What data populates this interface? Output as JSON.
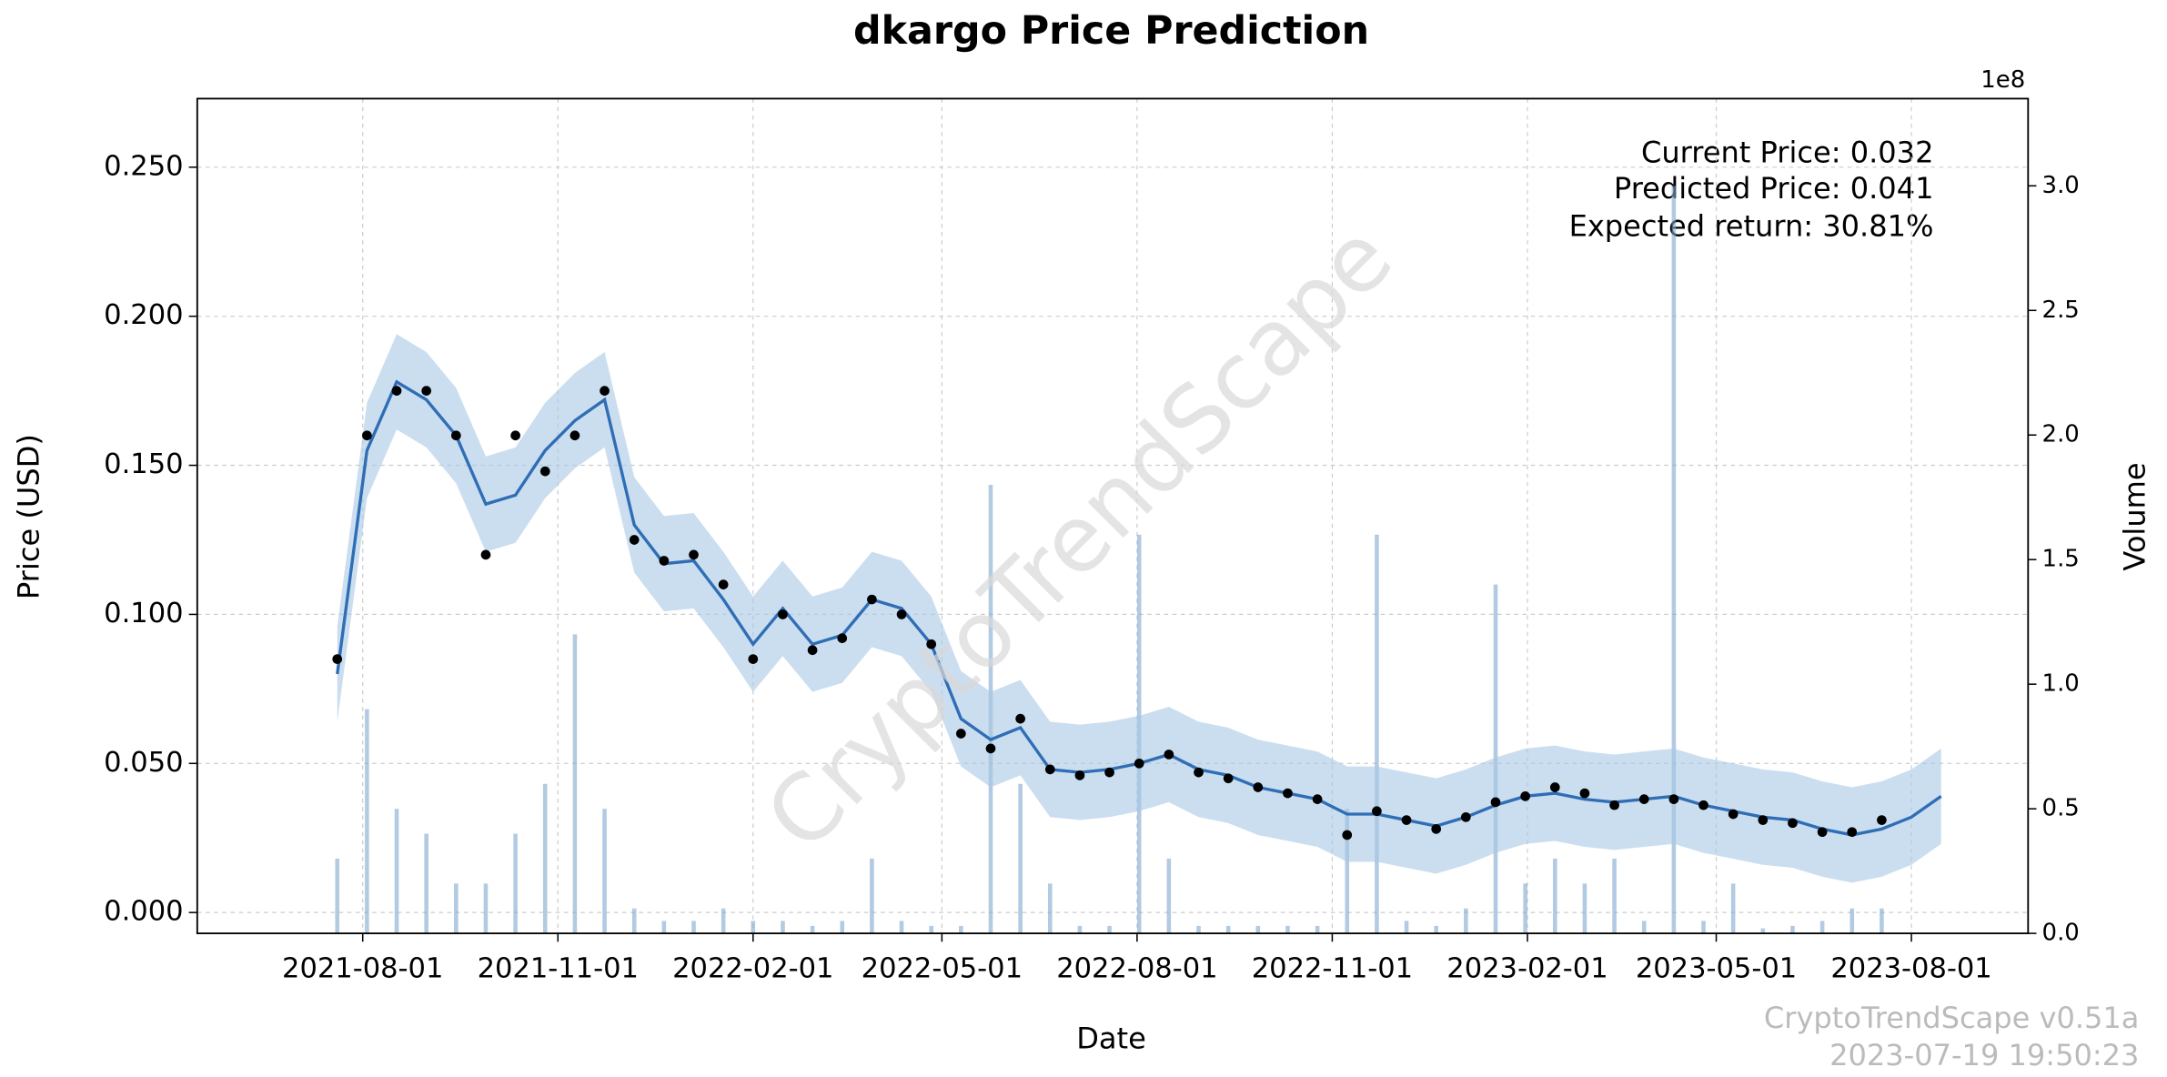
{
  "chart_data": {
    "type": "line",
    "title": "dkargo Price Prediction",
    "x_label": "Date",
    "y_label": "Price (USD)",
    "y2_label": "Volume",
    "y2_offset_label": "1e8",
    "annotations": [
      "Current Price: 0.032",
      "Predicted Price: 0.041",
      "Expected return: 30.81%"
    ],
    "watermark": "CryptoTrendScape",
    "footer": [
      "CryptoTrendScape v0.51a",
      "2023-07-19 19:50:23"
    ],
    "grid": true,
    "price_color": "#000000",
    "forecast_color": "#2f6eb5",
    "band_color": "#a9c8e6",
    "volume_color": "#7fa7cf",
    "xlim": [
      "2021-05-15",
      "2023-09-25"
    ],
    "xticks": [
      "2021-08-01",
      "2021-11-01",
      "2022-02-01",
      "2022-05-01",
      "2022-08-01",
      "2022-11-01",
      "2023-02-01",
      "2023-05-01",
      "2023-08-01"
    ],
    "ylim": [
      -0.007,
      0.273
    ],
    "yticks": [
      {
        "value": 0,
        "label": "0.000"
      },
      {
        "value": 0.05,
        "label": "0.050"
      },
      {
        "value": 0.1,
        "label": "0.100"
      },
      {
        "value": 0.15,
        "label": "0.150"
      },
      {
        "value": 0.2,
        "label": "0.200"
      },
      {
        "value": 0.25,
        "label": "0.250"
      }
    ],
    "y2lim": [
      0,
      3.35
    ],
    "y2ticks": [
      {
        "value": 0,
        "label": "0.0"
      },
      {
        "value": 0.5,
        "label": "0.5"
      },
      {
        "value": 1,
        "label": "1.0"
      },
      {
        "value": 1.5,
        "label": "1.5"
      },
      {
        "value": 2,
        "label": "2.0"
      },
      {
        "value": 2.5,
        "label": "2.5"
      },
      {
        "value": 3,
        "label": "3.0"
      }
    ],
    "x": [
      "2021-07-20",
      "2021-08-03",
      "2021-08-17",
      "2021-08-31",
      "2021-09-14",
      "2021-09-28",
      "2021-10-12",
      "2021-10-26",
      "2021-11-09",
      "2021-11-23",
      "2021-12-07",
      "2021-12-21",
      "2022-01-04",
      "2022-01-18",
      "2022-02-01",
      "2022-02-15",
      "2022-03-01",
      "2022-03-15",
      "2022-03-29",
      "2022-04-12",
      "2022-04-26",
      "2022-05-10",
      "2022-05-24",
      "2022-06-07",
      "2022-06-21",
      "2022-07-05",
      "2022-07-19",
      "2022-08-02",
      "2022-08-16",
      "2022-08-30",
      "2022-09-13",
      "2022-09-27",
      "2022-10-11",
      "2022-10-25",
      "2022-11-08",
      "2022-11-22",
      "2022-12-06",
      "2022-12-20",
      "2023-01-03",
      "2023-01-17",
      "2023-01-31",
      "2023-02-14",
      "2023-02-28",
      "2023-03-14",
      "2023-03-28",
      "2023-04-11",
      "2023-04-25",
      "2023-05-09",
      "2023-05-23",
      "2023-06-06",
      "2023-06-20",
      "2023-07-04",
      "2023-07-18",
      "2023-08-01",
      "2023-08-15"
    ],
    "price": [
      0.085,
      0.16,
      0.175,
      0.175,
      0.16,
      0.12,
      0.16,
      0.148,
      0.16,
      0.175,
      0.125,
      0.118,
      0.12,
      0.11,
      0.085,
      0.1,
      0.088,
      0.092,
      0.105,
      0.1,
      0.09,
      0.06,
      0.055,
      0.065,
      0.048,
      0.046,
      0.047,
      0.05,
      0.053,
      0.047,
      0.045,
      0.042,
      0.04,
      0.038,
      0.026,
      0.034,
      0.031,
      0.028,
      0.032,
      0.037,
      0.039,
      0.042,
      0.04,
      0.036,
      0.038,
      0.038,
      0.036,
      0.033,
      0.031,
      0.03,
      0.027,
      0.027,
      0.031,
      null,
      null
    ],
    "forecast": [
      0.08,
      0.155,
      0.178,
      0.172,
      0.16,
      0.137,
      0.14,
      0.155,
      0.165,
      0.172,
      0.13,
      0.117,
      0.118,
      0.105,
      0.09,
      0.102,
      0.09,
      0.093,
      0.105,
      0.102,
      0.09,
      0.065,
      0.058,
      0.062,
      0.048,
      0.047,
      0.048,
      0.05,
      0.053,
      0.048,
      0.046,
      0.042,
      0.04,
      0.038,
      0.033,
      0.033,
      0.031,
      0.029,
      0.032,
      0.036,
      0.039,
      0.04,
      0.038,
      0.037,
      0.038,
      0.039,
      0.036,
      0.034,
      0.032,
      0.031,
      0.028,
      0.026,
      0.028,
      0.032,
      0.039
    ],
    "forecast_lower": [
      0.064,
      0.139,
      0.162,
      0.156,
      0.144,
      0.121,
      0.124,
      0.139,
      0.149,
      0.156,
      0.114,
      0.101,
      0.102,
      0.089,
      0.074,
      0.086,
      0.074,
      0.077,
      0.089,
      0.086,
      0.074,
      0.049,
      0.042,
      0.046,
      0.032,
      0.031,
      0.032,
      0.034,
      0.037,
      0.032,
      0.03,
      0.026,
      0.024,
      0.022,
      0.017,
      0.017,
      0.015,
      0.013,
      0.016,
      0.02,
      0.023,
      0.024,
      0.022,
      0.021,
      0.022,
      0.023,
      0.02,
      0.018,
      0.016,
      0.015,
      0.012,
      0.01,
      0.012,
      0.016,
      0.023
    ],
    "forecast_upper": [
      0.096,
      0.171,
      0.194,
      0.188,
      0.176,
      0.153,
      0.156,
      0.171,
      0.181,
      0.188,
      0.146,
      0.133,
      0.134,
      0.121,
      0.106,
      0.118,
      0.106,
      0.109,
      0.121,
      0.118,
      0.106,
      0.081,
      0.074,
      0.078,
      0.064,
      0.063,
      0.064,
      0.066,
      0.069,
      0.064,
      0.062,
      0.058,
      0.056,
      0.054,
      0.049,
      0.049,
      0.047,
      0.045,
      0.048,
      0.052,
      0.055,
      0.056,
      0.054,
      0.053,
      0.054,
      0.055,
      0.052,
      0.05,
      0.048,
      0.047,
      0.044,
      0.042,
      0.044,
      0.048,
      0.055
    ],
    "volume": [
      0.3,
      0.9,
      0.5,
      0.4,
      0.2,
      0.2,
      0.4,
      0.6,
      1.2,
      0.5,
      0.1,
      0.05,
      0.05,
      0.1,
      0.05,
      0.05,
      0.03,
      0.05,
      0.3,
      0.05,
      0.03,
      0.03,
      1.8,
      0.6,
      0.2,
      0.03,
      0.03,
      1.6,
      0.3,
      0.03,
      0.03,
      0.03,
      0.03,
      0.03,
      0.5,
      1.6,
      0.05,
      0.03,
      0.1,
      1.4,
      0.2,
      0.3,
      0.2,
      0.3,
      0.05,
      3.0,
      0.05,
      0.2,
      0.02,
      0.03,
      0.05,
      0.1,
      0.1,
      null,
      null
    ]
  }
}
